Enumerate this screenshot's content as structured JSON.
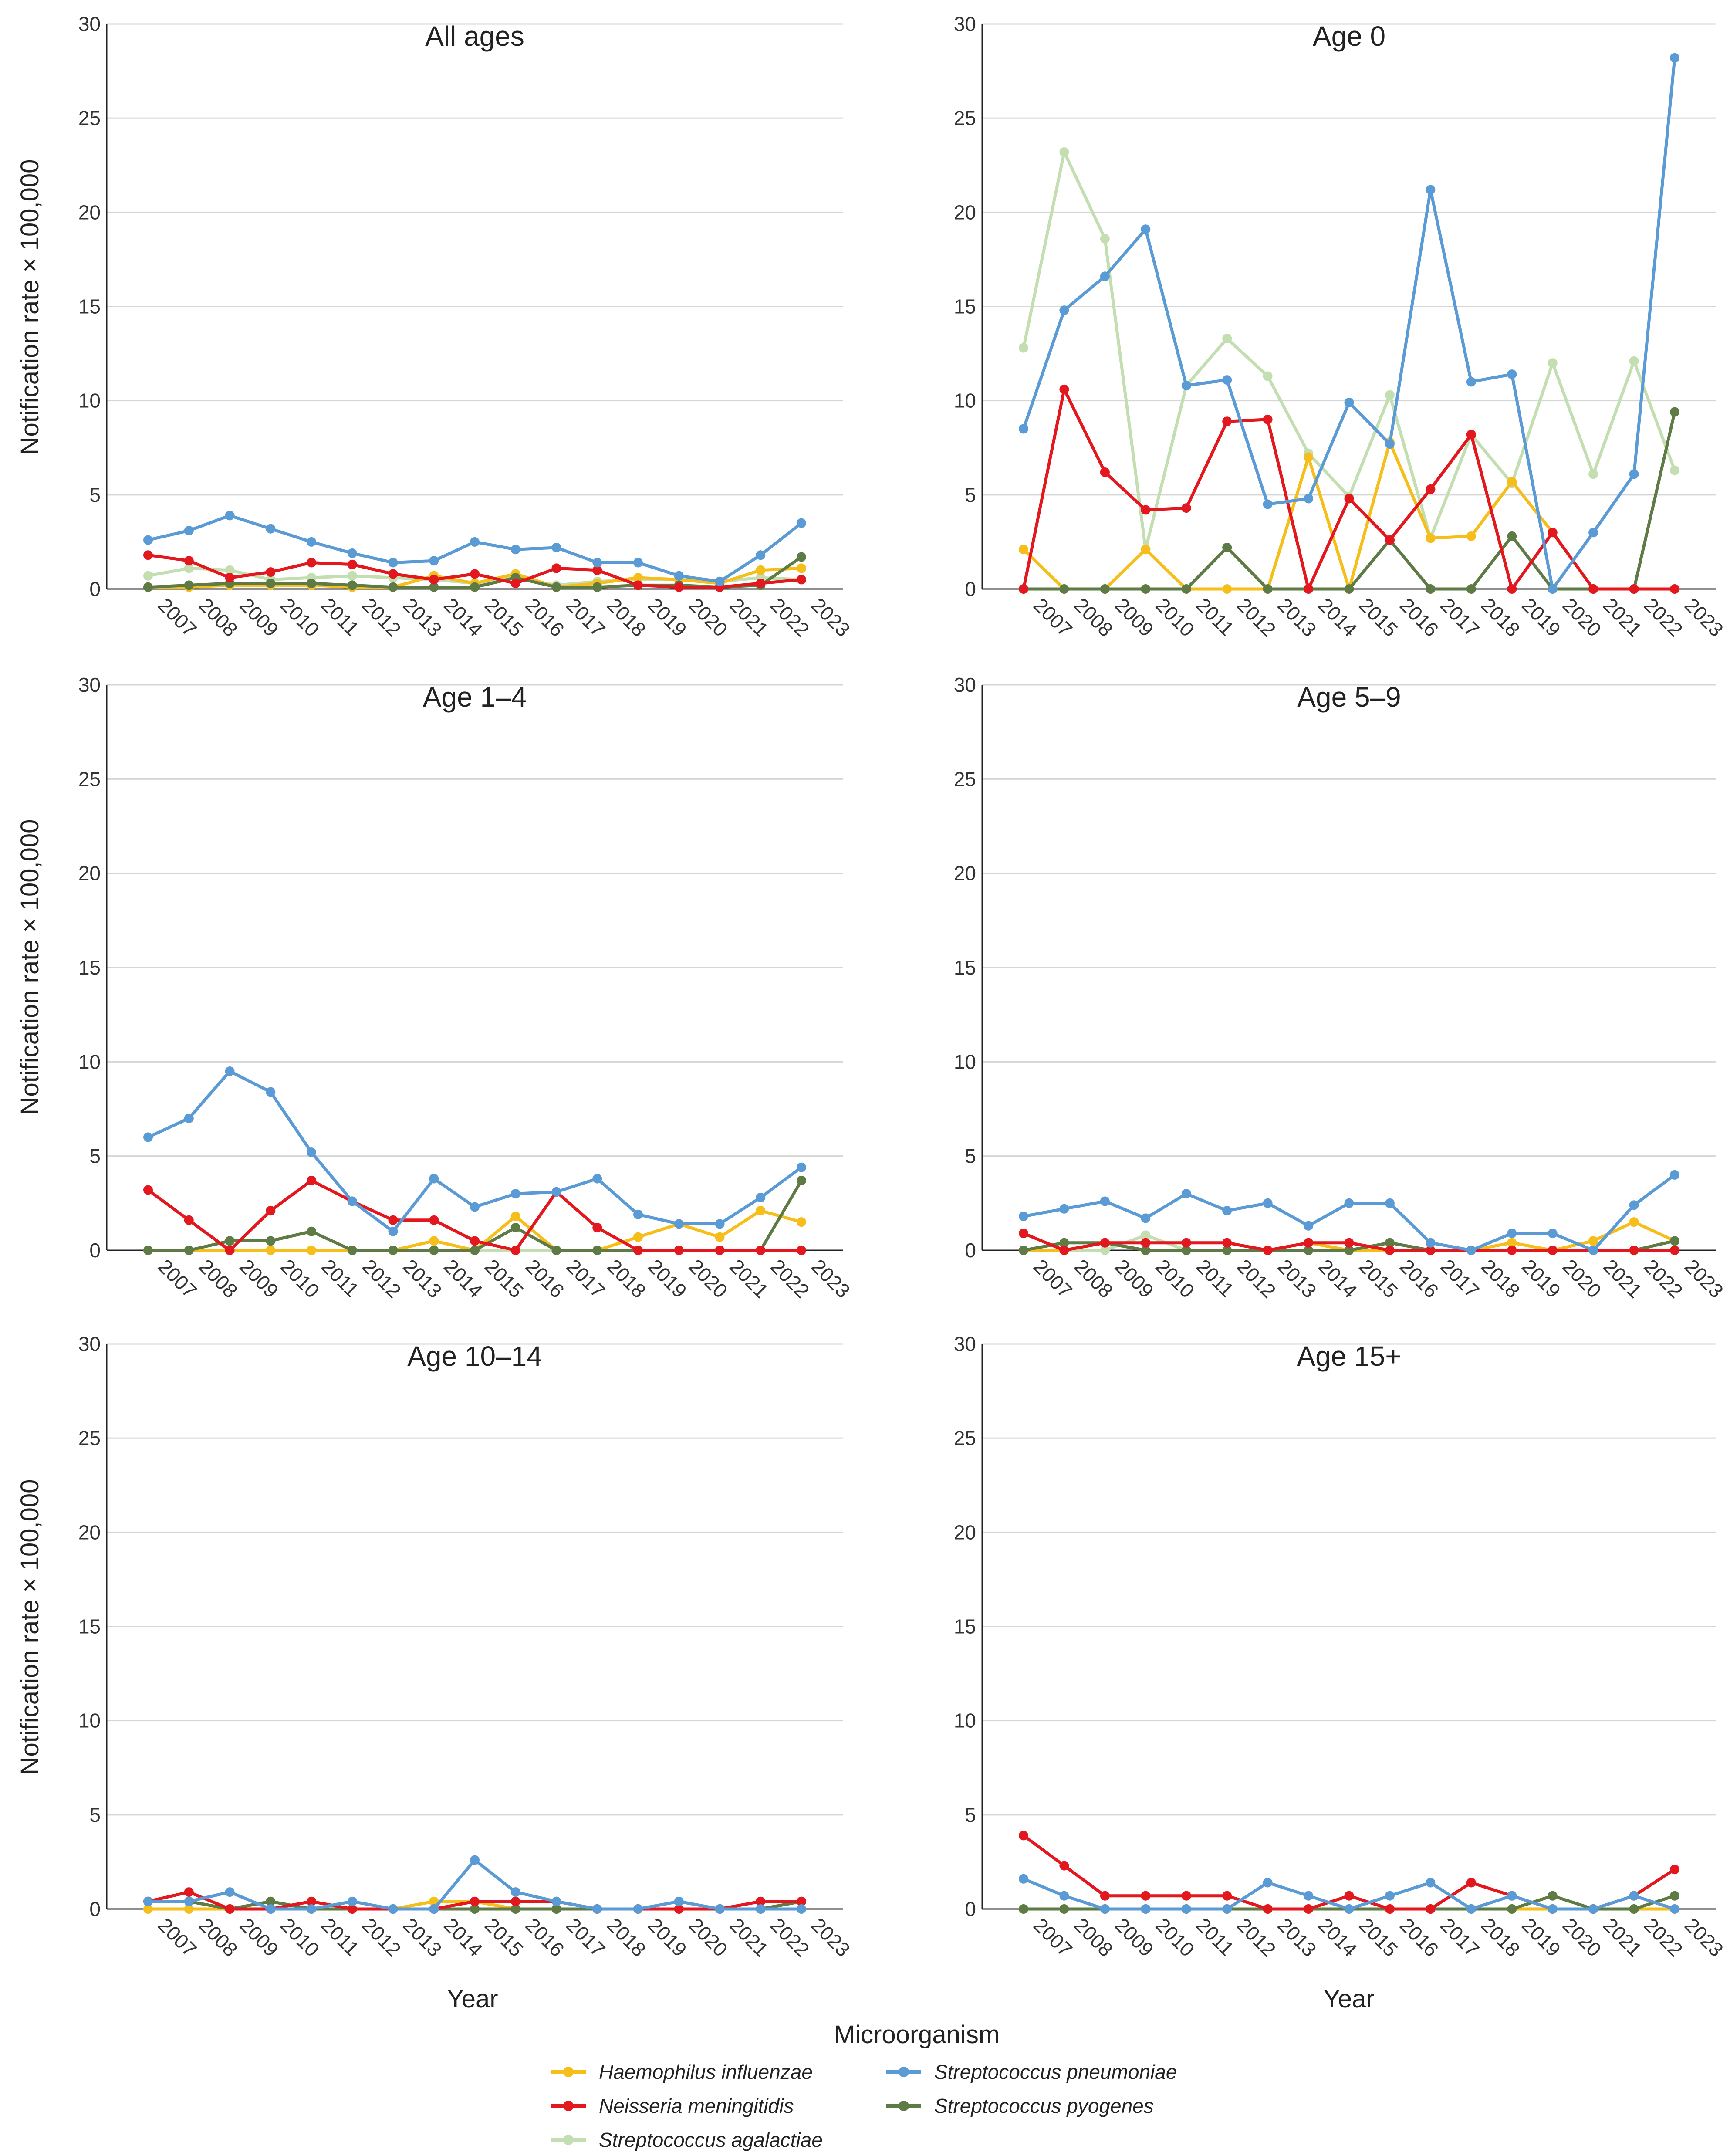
{
  "chart_data": {
    "type": "line",
    "x": [
      "2007",
      "2008",
      "2009",
      "2010",
      "2011",
      "2012",
      "2013",
      "2014",
      "2015",
      "2016",
      "2017",
      "2018",
      "2019",
      "2020",
      "2021",
      "2022",
      "2023"
    ],
    "ylim": [
      0,
      30
    ],
    "yticks": [
      "0",
      "5",
      "10",
      "15",
      "20",
      "25",
      "30"
    ],
    "ylabel": "Notification rate × 100,000",
    "xlabel": "Year",
    "legend": {
      "title": "Microorganism",
      "position": "bottom-center",
      "items": [
        {
          "name": "Haemophilus influenzae",
          "color": "#F5BE1A"
        },
        {
          "name": "Streptococcus pneumoniae",
          "color": "#5B9BD5"
        },
        {
          "name": "Neisseria meningitidis",
          "color": "#E3171E"
        },
        {
          "name": "Streptococcus pyogenes",
          "color": "#5E7A45"
        },
        {
          "name": "Streptococcus agalactiae",
          "color": "#C3DEB0"
        }
      ]
    },
    "panels": [
      {
        "title": "All ages",
        "series": [
          {
            "name": "Streptococcus agalactiae",
            "values": [
              0.7,
              1.1,
              1.0,
              0.5,
              0.6,
              0.7,
              0.6,
              0.5,
              0.3,
              0.6,
              0.2,
              0.4,
              0.5,
              0.5,
              0.4,
              0.6,
              0.5
            ]
          },
          {
            "name": "Haemophilus influenzae",
            "values": [
              0.1,
              0.1,
              0.2,
              0.2,
              0.2,
              0.1,
              0.1,
              0.7,
              0.3,
              0.8,
              0.1,
              0.3,
              0.6,
              0.5,
              0.3,
              1.0,
              1.1
            ]
          },
          {
            "name": "Streptococcus pyogenes",
            "values": [
              0.1,
              0.2,
              0.3,
              0.3,
              0.3,
              0.2,
              0.1,
              0.1,
              0.1,
              0.6,
              0.1,
              0.1,
              0.2,
              0.2,
              0.1,
              0.2,
              1.7
            ]
          },
          {
            "name": "Neisseria meningitidis",
            "values": [
              1.8,
              1.5,
              0.6,
              0.9,
              1.4,
              1.3,
              0.8,
              0.5,
              0.8,
              0.3,
              1.1,
              1.0,
              0.2,
              0.1,
              0.1,
              0.3,
              0.5
            ]
          },
          {
            "name": "Streptococcus pneumoniae",
            "values": [
              2.6,
              3.1,
              3.9,
              3.2,
              2.5,
              1.9,
              1.4,
              1.5,
              2.5,
              2.1,
              2.2,
              1.4,
              1.4,
              0.7,
              0.4,
              1.8,
              3.5
            ]
          }
        ]
      },
      {
        "title": "Age 0",
        "series": [
          {
            "name": "Streptococcus agalactiae",
            "values": [
              12.8,
              23.2,
              18.6,
              2.1,
              10.8,
              13.3,
              11.3,
              7.2,
              4.9,
              10.3,
              2.7,
              8.2,
              5.6,
              12.0,
              6.1,
              12.1,
              6.3
            ]
          },
          {
            "name": "Haemophilus influenzae",
            "values": [
              2.1,
              0,
              0,
              2.1,
              0,
              0,
              0,
              7.0,
              0,
              7.8,
              2.7,
              2.8,
              5.7,
              3.0,
              0,
              0,
              0
            ]
          },
          {
            "name": "Streptococcus pyogenes",
            "values": [
              0,
              0,
              0,
              0,
              0,
              2.2,
              0,
              0,
              0,
              2.6,
              0,
              0,
              2.8,
              0,
              0,
              0,
              9.4
            ]
          },
          {
            "name": "Neisseria meningitidis",
            "values": [
              0,
              10.6,
              6.2,
              4.2,
              4.3,
              8.9,
              9.0,
              0,
              4.8,
              2.6,
              5.3,
              8.2,
              0,
              3.0,
              0,
              0,
              0
            ]
          },
          {
            "name": "Streptococcus pneumoniae",
            "values": [
              8.5,
              14.8,
              16.6,
              19.1,
              10.8,
              11.1,
              4.5,
              4.8,
              9.9,
              7.7,
              21.2,
              11.0,
              11.4,
              0,
              3.0,
              6.1,
              28.2
            ]
          }
        ]
      },
      {
        "title": "Age 1–4",
        "series": [
          {
            "name": "Streptococcus agalactiae",
            "values": [
              0,
              0,
              0,
              0,
              0,
              0,
              0,
              0,
              0,
              0,
              0,
              0,
              0,
              0,
              0,
              0,
              0
            ]
          },
          {
            "name": "Haemophilus influenzae",
            "values": [
              0,
              0,
              0,
              0,
              0,
              0,
              0,
              0.5,
              0,
              1.8,
              0,
              0,
              0.7,
              1.4,
              0.7,
              2.1,
              1.5
            ]
          },
          {
            "name": "Streptococcus pyogenes",
            "values": [
              0,
              0,
              0.5,
              0.5,
              1.0,
              0,
              0,
              0,
              0,
              1.2,
              0,
              0,
              0,
              0,
              0,
              0,
              3.7
            ]
          },
          {
            "name": "Neisseria meningitidis",
            "values": [
              3.2,
              1.6,
              0,
              2.1,
              3.7,
              2.6,
              1.6,
              1.6,
              0.5,
              0,
              3.1,
              1.2,
              0,
              0,
              0,
              0,
              0
            ]
          },
          {
            "name": "Streptococcus pneumoniae",
            "values": [
              6.0,
              7.0,
              9.5,
              8.4,
              5.2,
              2.6,
              1.0,
              3.8,
              2.3,
              3.0,
              3.1,
              3.8,
              1.9,
              1.4,
              1.4,
              2.8,
              4.4
            ]
          }
        ]
      },
      {
        "title": "Age 5–9",
        "series": [
          {
            "name": "Streptococcus agalactiae",
            "values": [
              0,
              0,
              0,
              0.8,
              0,
              0,
              0,
              0,
              0,
              0,
              0,
              0,
              0,
              0,
              0,
              0,
              0
            ]
          },
          {
            "name": "Haemophilus influenzae",
            "values": [
              0,
              0,
              0.4,
              0,
              0,
              0,
              0,
              0.4,
              0,
              0,
              0,
              0,
              0.4,
              0,
              0.5,
              1.5,
              0.5
            ]
          },
          {
            "name": "Streptococcus pyogenes",
            "values": [
              0,
              0.4,
              0.4,
              0,
              0,
              0,
              0,
              0,
              0,
              0.4,
              0,
              0,
              0,
              0,
              0,
              0,
              0.5
            ]
          },
          {
            "name": "Neisseria meningitidis",
            "values": [
              0.9,
              0,
              0.4,
              0.4,
              0.4,
              0.4,
              0,
              0.4,
              0.4,
              0,
              0,
              0,
              0,
              0,
              0,
              0,
              0
            ]
          },
          {
            "name": "Streptococcus pneumoniae",
            "values": [
              1.8,
              2.2,
              2.6,
              1.7,
              3.0,
              2.1,
              2.5,
              1.3,
              2.5,
              2.5,
              0.4,
              0,
              0.9,
              0.9,
              0,
              2.4,
              4.0
            ]
          }
        ]
      },
      {
        "title": "Age 10–14",
        "series": [
          {
            "name": "Streptococcus agalactiae",
            "values": [
              0,
              0,
              0,
              0,
              0,
              0,
              0,
              0,
              0,
              0,
              0,
              0,
              0,
              0,
              0,
              0,
              0
            ]
          },
          {
            "name": "Haemophilus influenzae",
            "values": [
              0,
              0,
              0,
              0,
              0,
              0,
              0,
              0.4,
              0.4,
              0,
              0,
              0,
              0,
              0,
              0,
              0,
              0.4
            ]
          },
          {
            "name": "Streptococcus pyogenes",
            "values": [
              0.4,
              0.4,
              0,
              0.4,
              0,
              0,
              0,
              0,
              0,
              0,
              0,
              0,
              0,
              0,
              0,
              0,
              0.4
            ]
          },
          {
            "name": "Neisseria meningitidis",
            "values": [
              0.4,
              0.9,
              0,
              0,
              0.4,
              0,
              0,
              0,
              0.4,
              0.4,
              0.4,
              0,
              0,
              0,
              0,
              0.4,
              0.4
            ]
          },
          {
            "name": "Streptococcus pneumoniae",
            "values": [
              0.4,
              0.4,
              0.9,
              0,
              0,
              0.4,
              0,
              0,
              2.6,
              0.9,
              0.4,
              0,
              0,
              0.4,
              0,
              0,
              0
            ]
          }
        ]
      },
      {
        "title": "Age 15+",
        "series": [
          {
            "name": "Streptococcus agalactiae",
            "values": [
              0,
              0,
              0,
              0,
              0,
              0,
              0,
              0,
              0,
              0,
              0,
              0,
              0,
              0,
              0,
              0,
              0
            ]
          },
          {
            "name": "Haemophilus influenzae",
            "values": [
              0,
              0,
              0,
              0,
              0,
              0,
              0,
              0,
              0,
              0,
              0,
              0,
              0,
              0,
              0,
              0,
              0
            ]
          },
          {
            "name": "Streptococcus pyogenes",
            "values": [
              0,
              0,
              0,
              0,
              0,
              0,
              0,
              0,
              0,
              0,
              0,
              0,
              0,
              0.7,
              0,
              0,
              0.7
            ]
          },
          {
            "name": "Neisseria meningitidis",
            "values": [
              3.9,
              2.3,
              0.7,
              0.7,
              0.7,
              0.7,
              0,
              0,
              0.7,
              0,
              0,
              1.4,
              0.7,
              0,
              0,
              0.7,
              2.1
            ]
          },
          {
            "name": "Streptococcus pneumoniae",
            "values": [
              1.6,
              0.7,
              0,
              0,
              0,
              0,
              1.4,
              0.7,
              0,
              0.7,
              1.4,
              0,
              0.7,
              0,
              0,
              0.7,
              0
            ]
          }
        ]
      }
    ]
  }
}
